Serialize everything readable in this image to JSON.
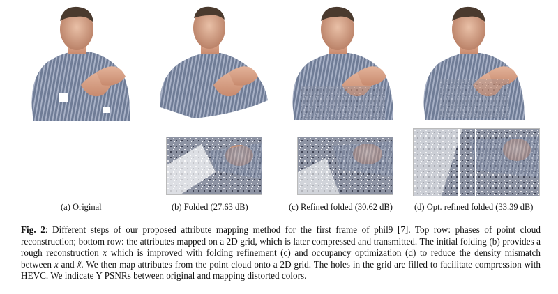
{
  "figure": {
    "subcaptions": {
      "a": "(a) Original",
      "b": "(b) Folded (27.63 dB)",
      "c": "(c) Refined folded (30.62 dB)",
      "d": "(d) Opt. refined folded (33.39 dB)"
    },
    "caption": {
      "label": "Fig. 2",
      "text_1": ": Different steps of our proposed attribute mapping method for the first frame of phil9 [7]. Top row: phases of point cloud reconstruction; bottom row: the attributes mapped on a 2D grid, which is later compressed and transmitted. The initial folding (b) provides a rough reconstruction ",
      "var_x": "x",
      "text_2": " which is improved with folding refinement (c) and occupancy optimization (d) to reduce the density mismatch between ",
      "var_x2": "x",
      "text_3": " and ",
      "var_xt": "x̃",
      "text_4": ". We then map attributes from the point cloud onto a 2D grid. The holes in the grid are filled to facilitate compression with HEVC. We indicate Y PSNRs between original and mapping distorted colors."
    }
  }
}
